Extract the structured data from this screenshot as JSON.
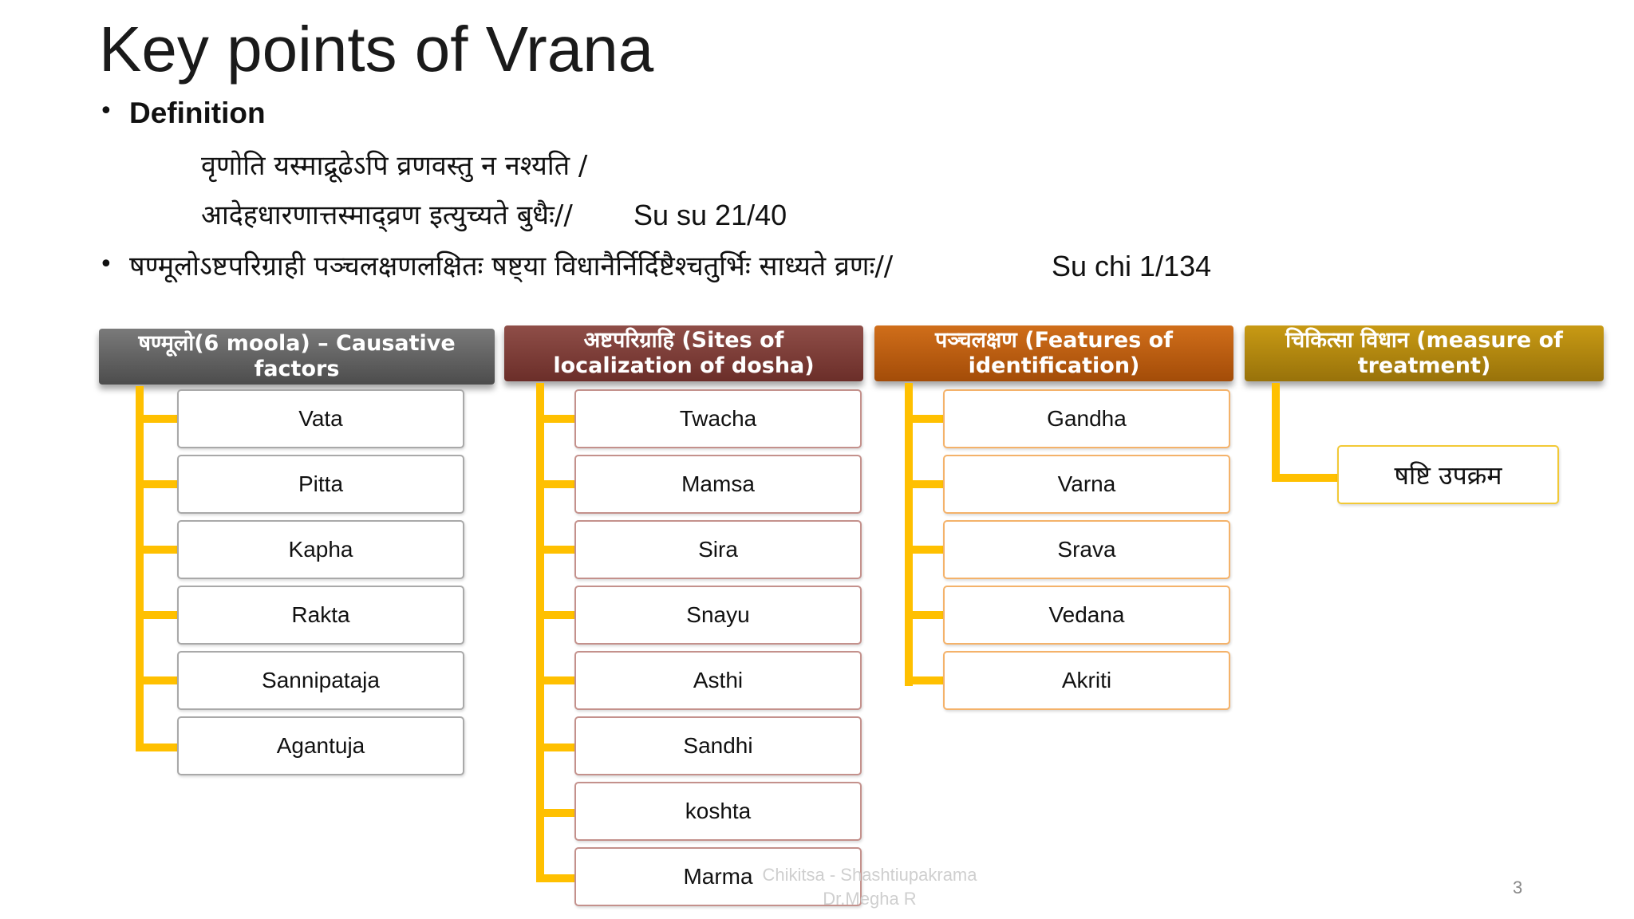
{
  "title": "Key points of Vrana",
  "definition_heading": "Definition",
  "verse_line1": "वृणोति यस्माद्रूढेऽपि व्रणवस्तु न नश्यति /",
  "verse_line2": "आदेहधारणात्तस्माद्व्रण इत्युच्यते बुधैः//",
  "verse_ref1": "Su su 21/40",
  "verse_line3": "षण्मूलोऽष्टपरिग्राही पञ्चलक्षणलक्षितः षष्ट्या विधानैर्निर्दिष्टैश्चतुर्भिः साध्यते व्रणः//",
  "verse_ref2": "Su chi 1/134",
  "columns": [
    {
      "header": "षण्मूलो(6 moola) – Causative factors",
      "items": [
        "Vata",
        "Pitta",
        "Kapha",
        "Rakta",
        "Sannipataja",
        "Agantuja"
      ]
    },
    {
      "header": "अष्टपरिग्राहि (Sites of localization of dosha)",
      "items": [
        "Twacha",
        "Mamsa",
        "Sira",
        "Snayu",
        "Asthi",
        "Sandhi",
        "koshta",
        "Marma"
      ]
    },
    {
      "header": "पञ्चलक्षण (Features of identification)",
      "items": [
        "Gandha",
        "Varna",
        "Srava",
        "Vedana",
        "Akriti"
      ]
    },
    {
      "header": "चिकित्सा विधान (measure of treatment)",
      "items": [
        "षष्टि उपक्रम"
      ]
    }
  ],
  "footer_line1": "Chikitsa - Shashtiupakrama",
  "footer_line2": "Dr.Megha R",
  "page_number": "3",
  "colors": {
    "connector": "#ffc000",
    "header1": "#5a5a5a",
    "header2": "#7a3a34",
    "header3": "#b8580c",
    "header4": "#a9820d"
  }
}
